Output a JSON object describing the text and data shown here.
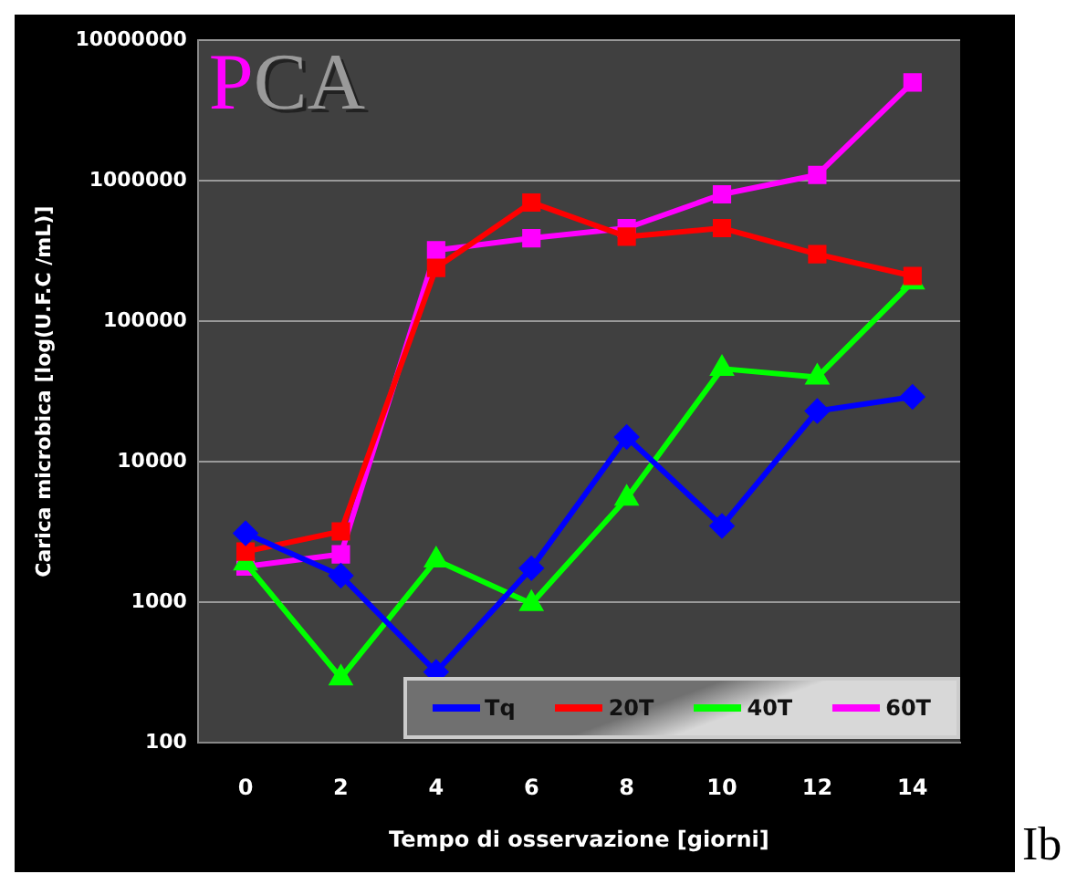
{
  "chart_data": {
    "type": "line",
    "title": "PCA",
    "xlabel": "Tempo di osservazione [giorni]",
    "ylabel": "Carica microbica [log(U.F.C /mL)]",
    "annotations": [
      "Ib"
    ],
    "categories": [
      "0",
      "2",
      "4",
      "6",
      "8",
      "10",
      "12",
      "14"
    ],
    "series": [
      {
        "name": "Tq",
        "color": "#0000ff",
        "marker": "diamond",
        "values": [
          3100,
          1550,
          320,
          1750,
          15000,
          3500,
          23000,
          29000
        ]
      },
      {
        "name": "20T",
        "color": "#ff0000",
        "marker": "square",
        "values": [
          2300,
          3200,
          240000,
          700000,
          400000,
          460000,
          300000,
          210000
        ]
      },
      {
        "name": "40T",
        "color": "#00ff00",
        "marker": "triangle",
        "values": [
          1900,
          290,
          2000,
          980,
          5500,
          46000,
          40000,
          190000
        ]
      },
      {
        "name": "60T",
        "color": "#ff00ff",
        "marker": "square",
        "values": [
          1800,
          2200,
          320000,
          390000,
          460000,
          800000,
          1100000,
          5000000
        ]
      }
    ],
    "log": true,
    "ylim": [
      100,
      10000000
    ],
    "yticks": [
      100,
      1000,
      10000,
      100000,
      1000000,
      10000000
    ],
    "grid": "y",
    "legend": "bottom right"
  }
}
